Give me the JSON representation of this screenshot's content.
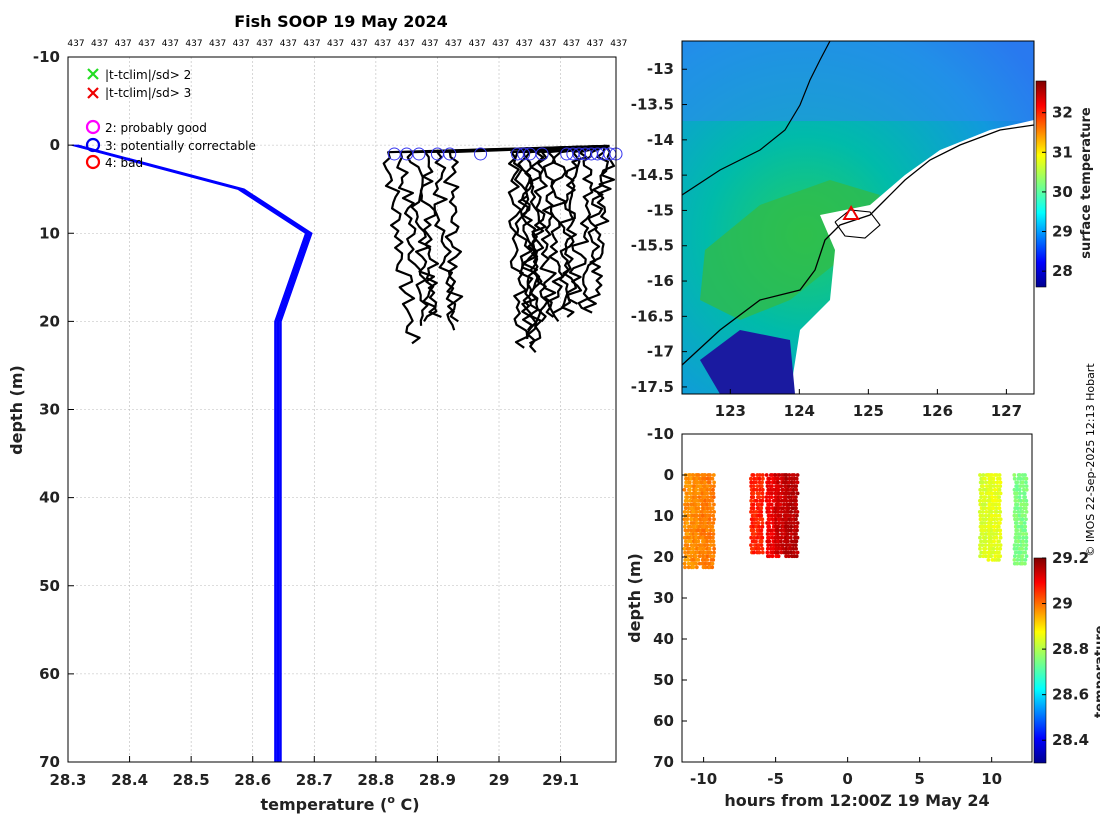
{
  "title": "Fish SOOP 19 May 2024",
  "top_label": "437",
  "credit": "© IMOS 22-Sep-2025 12:13 Hobart",
  "legend": {
    "x_items": [
      {
        "label": "|t-tclim|/sd> 2",
        "color": "#22dd22"
      },
      {
        "label": "|t-tclim|/sd> 3",
        "color": "#ee0000"
      }
    ],
    "o_items": [
      {
        "label": "2: probably good",
        "color": "#ff00ff"
      },
      {
        "label": "3: potentially correctable",
        "color": "#0000ee"
      },
      {
        "label": "4: bad",
        "color": "#ff0000"
      }
    ]
  },
  "chart_data": [
    {
      "type": "line",
      "name": "temperature-profile",
      "title": "Fish SOOP 19 May 2024",
      "xlabel": "temperature (",
      "xlabel_sup": "o",
      "xlabel_unit": " C)",
      "ylabel": "depth (m)",
      "xlim": [
        28.3,
        29.19
      ],
      "ylim": [
        -10,
        70
      ],
      "xticks": [
        "28.3",
        "28.4",
        "28.5",
        "28.6",
        "28.7",
        "28.8",
        "28.9",
        "29",
        "29.1"
      ],
      "yticks": [
        "-10",
        "0",
        "10",
        "20",
        "30",
        "40",
        "50",
        "60",
        "70"
      ],
      "grid": true,
      "top_labels_count": 24,
      "climatology": {
        "color": "#0000ff",
        "offsets": [
          -0.004,
          -0.002,
          0,
          0.002,
          0.004,
          0.006
        ],
        "points": [
          [
            28.31,
            0
          ],
          [
            28.58,
            5
          ],
          [
            28.69,
            10
          ],
          [
            28.64,
            20
          ],
          [
            28.64,
            70
          ]
        ]
      },
      "profiles_color": "#000000",
      "profiles": [
        {
          "start": 28.82,
          "end": 28.86,
          "max_depth": 22.5
        },
        {
          "start": 28.84,
          "end": 28.88,
          "max_depth": 20.5
        },
        {
          "start": 28.86,
          "end": 28.89,
          "max_depth": 20.0
        },
        {
          "start": 28.88,
          "end": 28.9,
          "max_depth": 19.5
        },
        {
          "start": 28.9,
          "end": 28.92,
          "max_depth": 21.0
        },
        {
          "start": 28.92,
          "end": 28.93,
          "max_depth": 20.0
        },
        {
          "start": 29.02,
          "end": 29.04,
          "max_depth": 23.0
        },
        {
          "start": 29.03,
          "end": 29.05,
          "max_depth": 22.0
        },
        {
          "start": 29.04,
          "end": 29.06,
          "max_depth": 23.5
        },
        {
          "start": 29.05,
          "end": 29.05,
          "max_depth": 21.0
        },
        {
          "start": 29.06,
          "end": 29.07,
          "max_depth": 20.0
        },
        {
          "start": 29.07,
          "end": 29.06,
          "max_depth": 22.5
        },
        {
          "start": 29.08,
          "end": 29.08,
          "max_depth": 19.5
        },
        {
          "start": 29.1,
          "end": 29.09,
          "max_depth": 20.0
        },
        {
          "start": 29.12,
          "end": 29.1,
          "max_depth": 19.0
        },
        {
          "start": 29.13,
          "end": 29.11,
          "max_depth": 19.5
        },
        {
          "start": 29.15,
          "end": 29.12,
          "max_depth": 18.0
        },
        {
          "start": 29.17,
          "end": 29.14,
          "max_depth": 19.0
        },
        {
          "start": 29.18,
          "end": 29.15,
          "max_depth": 18.5
        }
      ],
      "circle_color": "#3333ee",
      "circle_temps": [
        28.83,
        28.85,
        28.87,
        28.9,
        28.92,
        28.97,
        29.03,
        29.04,
        29.05,
        29.07,
        29.11,
        29.12,
        29.13,
        29.14,
        29.15,
        29.16,
        29.17,
        29.18,
        29.19
      ]
    },
    {
      "type": "heatmap",
      "name": "surface-temperature-map",
      "xlim": [
        122.3,
        127.4
      ],
      "ylim": [
        -17.6,
        -12.6
      ],
      "xticks": [
        "123",
        "124",
        "125",
        "126",
        "127"
      ],
      "yticks": [
        "-13",
        "-13.5",
        "-14",
        "-14.5",
        "-15",
        "-15.5",
        "-16",
        "-16.5",
        "-17",
        "-17.5"
      ],
      "colorbar_label": "surface temperature",
      "colorbar_range": [
        27.6,
        32.8
      ],
      "colorbar_ticks": [
        "28",
        "29",
        "30",
        "31",
        "32"
      ],
      "ship_position": [
        124.75,
        -15.05
      ],
      "ship_color": "#ee0000"
    },
    {
      "type": "scatter",
      "name": "depth-time-section",
      "xlabel": "hours from 12:00Z 19 May 24",
      "ylabel": "depth (m)",
      "xlim": [
        -11.5,
        12.8
      ],
      "ylim": [
        -10,
        70
      ],
      "xticks": [
        "-10",
        "-5",
        "0",
        "5",
        "10"
      ],
      "yticks": [
        "-10",
        "0",
        "10",
        "20",
        "30",
        "40",
        "50",
        "60",
        "70"
      ],
      "colorbar_label": "temperature",
      "colorbar_range": [
        28.3,
        29.2
      ],
      "colorbar_ticks": [
        "28.4",
        "28.6",
        "28.8",
        "29",
        "29.2"
      ],
      "casts": [
        {
          "hour": -10.9,
          "temp": 28.96,
          "max_depth": 23
        },
        {
          "hour": -10.3,
          "temp": 28.97,
          "max_depth": 22
        },
        {
          "hour": -9.7,
          "temp": 28.98,
          "max_depth": 23
        },
        {
          "hour": -6.3,
          "temp": 29.06,
          "max_depth": 19
        },
        {
          "hour": -5.2,
          "temp": 29.1,
          "max_depth": 20
        },
        {
          "hour": -4.6,
          "temp": 29.13,
          "max_depth": 19
        },
        {
          "hour": -3.9,
          "temp": 29.15,
          "max_depth": 20
        },
        {
          "hour": 9.6,
          "temp": 28.83,
          "max_depth": 20
        },
        {
          "hour": 10.2,
          "temp": 28.84,
          "max_depth": 21
        },
        {
          "hour": 12.0,
          "temp": 28.75,
          "max_depth": 22
        }
      ]
    }
  ]
}
